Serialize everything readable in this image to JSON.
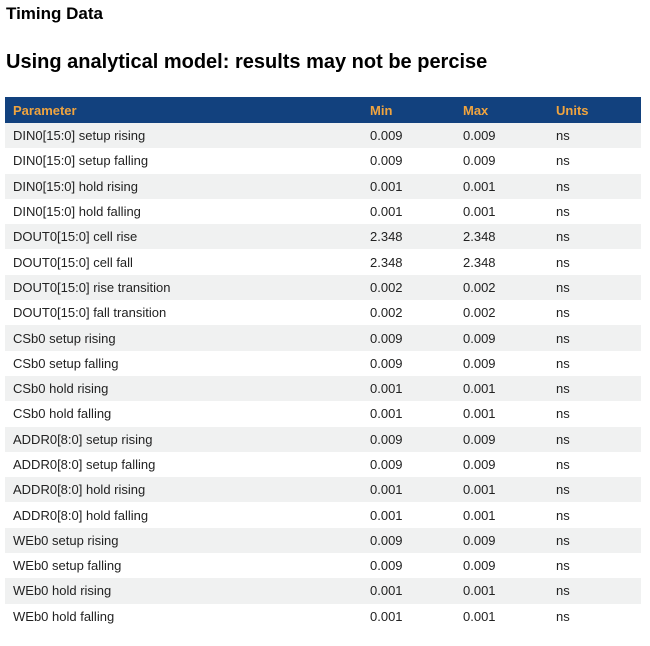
{
  "page": {
    "title": "Timing Data",
    "subtitle": "Using analytical model: results may not be percise"
  },
  "colors": {
    "header_bg": "#12417e",
    "header_text": "#f0a43f",
    "row_alt_bg": "#f0f1f1",
    "row_bg": "#ffffff",
    "row_text": "#222222",
    "page_bg": "#ffffff"
  },
  "table": {
    "columns": [
      {
        "key": "parameter",
        "label": "Parameter"
      },
      {
        "key": "min",
        "label": "Min"
      },
      {
        "key": "max",
        "label": "Max"
      },
      {
        "key": "units",
        "label": "Units"
      }
    ],
    "rows": [
      {
        "parameter": "DIN0[15:0] setup rising",
        "min": "0.009",
        "max": "0.009",
        "units": "ns"
      },
      {
        "parameter": "DIN0[15:0] setup falling",
        "min": "0.009",
        "max": "0.009",
        "units": "ns"
      },
      {
        "parameter": "DIN0[15:0] hold rising",
        "min": "0.001",
        "max": "0.001",
        "units": "ns"
      },
      {
        "parameter": "DIN0[15:0] hold falling",
        "min": "0.001",
        "max": "0.001",
        "units": "ns"
      },
      {
        "parameter": "DOUT0[15:0] cell rise",
        "min": "2.348",
        "max": "2.348",
        "units": "ns"
      },
      {
        "parameter": "DOUT0[15:0] cell fall",
        "min": "2.348",
        "max": "2.348",
        "units": "ns"
      },
      {
        "parameter": "DOUT0[15:0] rise transition",
        "min": "0.002",
        "max": "0.002",
        "units": "ns"
      },
      {
        "parameter": "DOUT0[15:0] fall transition",
        "min": "0.002",
        "max": "0.002",
        "units": "ns"
      },
      {
        "parameter": "CSb0 setup rising",
        "min": "0.009",
        "max": "0.009",
        "units": "ns"
      },
      {
        "parameter": "CSb0 setup falling",
        "min": "0.009",
        "max": "0.009",
        "units": "ns"
      },
      {
        "parameter": "CSb0 hold rising",
        "min": "0.001",
        "max": "0.001",
        "units": "ns"
      },
      {
        "parameter": "CSb0 hold falling",
        "min": "0.001",
        "max": "0.001",
        "units": "ns"
      },
      {
        "parameter": "ADDR0[8:0] setup rising",
        "min": "0.009",
        "max": "0.009",
        "units": "ns"
      },
      {
        "parameter": "ADDR0[8:0] setup falling",
        "min": "0.009",
        "max": "0.009",
        "units": "ns"
      },
      {
        "parameter": "ADDR0[8:0] hold rising",
        "min": "0.001",
        "max": "0.001",
        "units": "ns"
      },
      {
        "parameter": "ADDR0[8:0] hold falling",
        "min": "0.001",
        "max": "0.001",
        "units": "ns"
      },
      {
        "parameter": "WEb0 setup rising",
        "min": "0.009",
        "max": "0.009",
        "units": "ns"
      },
      {
        "parameter": "WEb0 setup falling",
        "min": "0.009",
        "max": "0.009",
        "units": "ns"
      },
      {
        "parameter": "WEb0 hold rising",
        "min": "0.001",
        "max": "0.001",
        "units": "ns"
      },
      {
        "parameter": "WEb0 hold falling",
        "min": "0.001",
        "max": "0.001",
        "units": "ns"
      }
    ]
  }
}
